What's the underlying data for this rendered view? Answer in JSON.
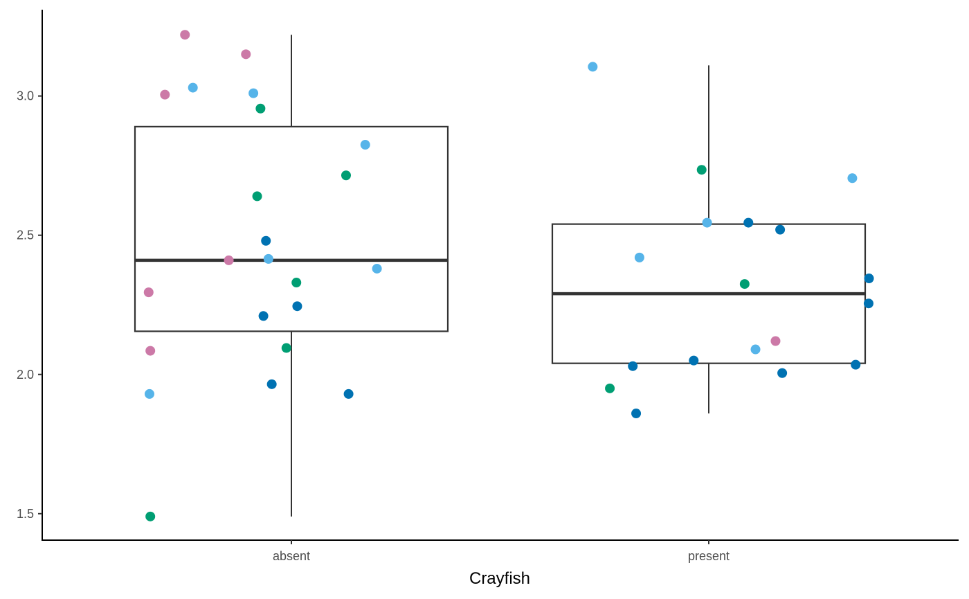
{
  "chart_data": {
    "type": "boxplot",
    "title": "",
    "xlabel": "Crayfish",
    "ylabel": "",
    "categories": [
      "absent",
      "present"
    ],
    "ylim": [
      1.405,
      3.31
    ],
    "yticks": [
      1.5,
      2.0,
      2.5,
      3.0
    ],
    "ytick_labels": [
      "1.5",
      "2.0",
      "2.5",
      "3.0"
    ],
    "grid": false,
    "legend": "none",
    "boxes": [
      {
        "category": "absent",
        "whisker_low": 1.49,
        "q1": 2.155,
        "median": 2.41,
        "q3": 2.89,
        "whisker_high": 3.22
      },
      {
        "category": "present",
        "whisker_low": 1.86,
        "q1": 2.04,
        "median": 2.29,
        "q3": 2.54,
        "whisker_high": 3.11
      }
    ],
    "point_colors": {
      "pink": "#CC79A7",
      "lightblue": "#56B4E9",
      "green": "#009E73",
      "blue": "#0072B2"
    },
    "points": [
      {
        "category": "absent",
        "x": 0.745,
        "y": 3.22,
        "color": "pink"
      },
      {
        "category": "absent",
        "x": 0.891,
        "y": 3.15,
        "color": "pink"
      },
      {
        "category": "absent",
        "x": 0.697,
        "y": 3.005,
        "color": "pink"
      },
      {
        "category": "absent",
        "x": 0.658,
        "y": 2.295,
        "color": "pink"
      },
      {
        "category": "absent",
        "x": 0.662,
        "y": 2.085,
        "color": "pink"
      },
      {
        "category": "absent",
        "x": 0.85,
        "y": 2.41,
        "color": "pink"
      },
      {
        "category": "absent",
        "x": 0.764,
        "y": 3.03,
        "color": "lightblue"
      },
      {
        "category": "absent",
        "x": 0.909,
        "y": 3.01,
        "color": "lightblue"
      },
      {
        "category": "absent",
        "x": 1.177,
        "y": 2.825,
        "color": "lightblue"
      },
      {
        "category": "absent",
        "x": 0.945,
        "y": 2.415,
        "color": "lightblue"
      },
      {
        "category": "absent",
        "x": 1.205,
        "y": 2.38,
        "color": "lightblue"
      },
      {
        "category": "absent",
        "x": 0.66,
        "y": 1.93,
        "color": "lightblue"
      },
      {
        "category": "absent",
        "x": 0.926,
        "y": 2.955,
        "color": "green"
      },
      {
        "category": "absent",
        "x": 1.131,
        "y": 2.715,
        "color": "green"
      },
      {
        "category": "absent",
        "x": 0.918,
        "y": 2.64,
        "color": "green"
      },
      {
        "category": "absent",
        "x": 1.012,
        "y": 2.33,
        "color": "green"
      },
      {
        "category": "absent",
        "x": 0.988,
        "y": 2.095,
        "color": "green"
      },
      {
        "category": "absent",
        "x": 0.662,
        "y": 1.49,
        "color": "green"
      },
      {
        "category": "absent",
        "x": 0.939,
        "y": 2.48,
        "color": "blue"
      },
      {
        "category": "absent",
        "x": 1.014,
        "y": 2.245,
        "color": "blue"
      },
      {
        "category": "absent",
        "x": 0.933,
        "y": 2.21,
        "color": "blue"
      },
      {
        "category": "absent",
        "x": 0.953,
        "y": 1.965,
        "color": "blue"
      },
      {
        "category": "absent",
        "x": 1.137,
        "y": 1.93,
        "color": "blue"
      },
      {
        "category": "present",
        "x": 1.722,
        "y": 3.105,
        "color": "lightblue"
      },
      {
        "category": "present",
        "x": 1.834,
        "y": 2.42,
        "color": "lightblue"
      },
      {
        "category": "present",
        "x": 1.996,
        "y": 2.545,
        "color": "lightblue"
      },
      {
        "category": "present",
        "x": 2.344,
        "y": 2.705,
        "color": "lightblue"
      },
      {
        "category": "present",
        "x": 2.112,
        "y": 2.09,
        "color": "lightblue"
      },
      {
        "category": "present",
        "x": 1.983,
        "y": 2.735,
        "color": "green"
      },
      {
        "category": "present",
        "x": 2.086,
        "y": 2.325,
        "color": "green"
      },
      {
        "category": "present",
        "x": 1.763,
        "y": 1.95,
        "color": "green"
      },
      {
        "category": "present",
        "x": 2.16,
        "y": 2.12,
        "color": "pink"
      },
      {
        "category": "present",
        "x": 2.095,
        "y": 2.545,
        "color": "blue"
      },
      {
        "category": "present",
        "x": 2.171,
        "y": 2.52,
        "color": "blue"
      },
      {
        "category": "present",
        "x": 2.384,
        "y": 2.345,
        "color": "blue"
      },
      {
        "category": "present",
        "x": 2.383,
        "y": 2.255,
        "color": "blue"
      },
      {
        "category": "present",
        "x": 1.964,
        "y": 2.05,
        "color": "blue"
      },
      {
        "category": "present",
        "x": 1.818,
        "y": 2.03,
        "color": "blue"
      },
      {
        "category": "present",
        "x": 2.176,
        "y": 2.005,
        "color": "blue"
      },
      {
        "category": "present",
        "x": 2.352,
        "y": 2.035,
        "color": "blue"
      },
      {
        "category": "present",
        "x": 1.826,
        "y": 1.86,
        "color": "blue"
      }
    ]
  }
}
